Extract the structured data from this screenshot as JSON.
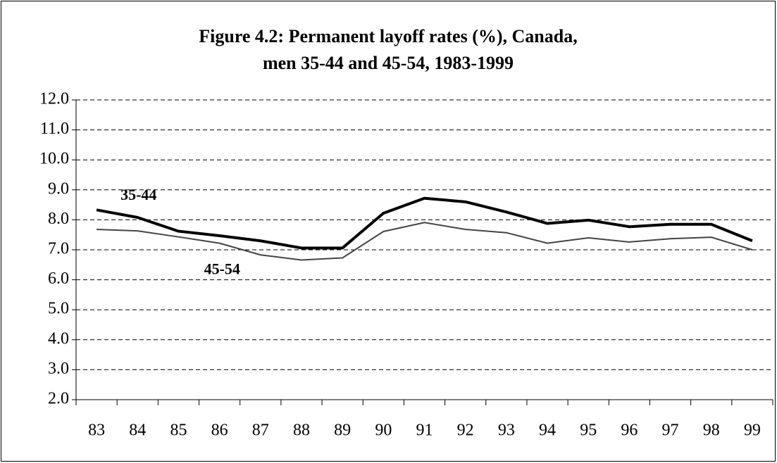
{
  "chart_data": {
    "type": "line",
    "title": [
      "Figure 4.2: Permanent layoff rates (%), Canada,",
      "men 35-44 and 45-54, 1983-1999"
    ],
    "categories": [
      "83",
      "84",
      "85",
      "86",
      "87",
      "88",
      "89",
      "90",
      "91",
      "92",
      "93",
      "94",
      "95",
      "96",
      "97",
      "98",
      "99"
    ],
    "series": [
      {
        "name": "35-44",
        "color": "#000000",
        "values": [
          8.33,
          8.08,
          7.62,
          7.47,
          7.3,
          7.06,
          7.06,
          8.22,
          8.72,
          8.6,
          8.26,
          7.88,
          7.99,
          7.77,
          7.85,
          7.85,
          7.3
        ]
      },
      {
        "name": "45-54",
        "color": "#444444",
        "values": [
          7.68,
          7.63,
          7.43,
          7.22,
          6.83,
          6.66,
          6.73,
          7.61,
          7.91,
          7.68,
          7.57,
          7.22,
          7.4,
          7.26,
          7.37,
          7.42,
          7.0
        ]
      }
    ],
    "ylim": [
      2,
      12
    ],
    "yticks": [
      {
        "value": 2,
        "label": "2.0"
      },
      {
        "value": 3,
        "label": "3.0"
      },
      {
        "value": 4,
        "label": "4.0"
      },
      {
        "value": 5,
        "label": "5.0"
      },
      {
        "value": 6,
        "label": "6.0"
      },
      {
        "value": 7,
        "label": "7.0"
      },
      {
        "value": 8,
        "label": "8.0"
      },
      {
        "value": 9,
        "label": "9.0"
      },
      {
        "value": 10,
        "label": "10.0"
      },
      {
        "value": 11,
        "label": "11.0"
      },
      {
        "value": 12,
        "label": "12.0"
      }
    ],
    "grid": true
  }
}
